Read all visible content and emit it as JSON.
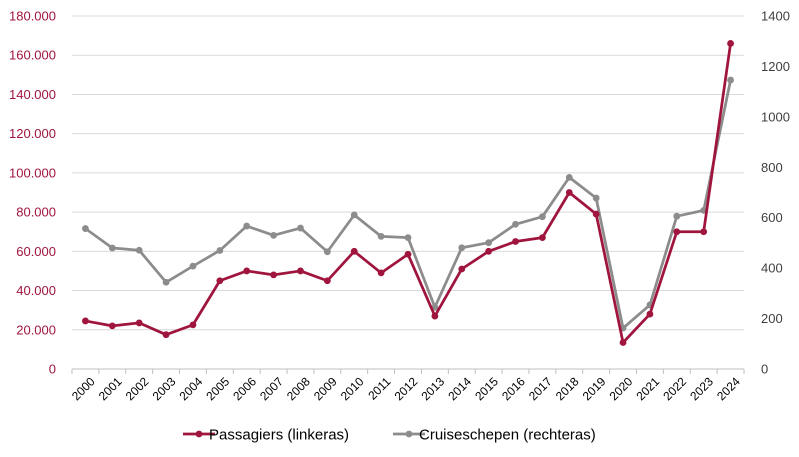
{
  "chart_data": {
    "type": "line",
    "title": "",
    "xlabel": "",
    "ylabel": "",
    "categories": [
      "2000",
      "2001",
      "2002",
      "2003",
      "2004",
      "2005",
      "2006",
      "2007",
      "2008",
      "2009",
      "2010",
      "2011",
      "2012",
      "2013",
      "2014",
      "2015",
      "2016",
      "2017",
      "2018",
      "2019",
      "2020",
      "2021",
      "2022",
      "2023",
      "2024"
    ],
    "y_left": {
      "ylim": [
        0,
        180000
      ],
      "ticks": [
        0,
        20000,
        40000,
        60000,
        80000,
        100000,
        120000,
        140000,
        160000,
        180000
      ],
      "tick_labels": [
        "0",
        "20.000",
        "40.000",
        "60.000",
        "80.000",
        "100.000",
        "120.000",
        "140.000",
        "160.000",
        "180.000"
      ]
    },
    "y_right": {
      "ylim": [
        0,
        1400
      ],
      "ticks": [
        0,
        200,
        400,
        600,
        800,
        1000,
        1200,
        1400
      ],
      "tick_labels": [
        "0",
        "200",
        "400",
        "600",
        "800",
        "1000",
        "1200",
        "1400"
      ]
    },
    "series": [
      {
        "name": "Passagiers (linkeras)",
        "axis": "left",
        "color": "#a0153e",
        "values": [
          24500,
          22000,
          23500,
          17500,
          22500,
          45000,
          50000,
          48000,
          50000,
          45000,
          60000,
          49000,
          58500,
          27000,
          51000,
          60000,
          65000,
          67000,
          90000,
          79000,
          13500,
          28000,
          70000,
          70000,
          166000
        ]
      },
      {
        "name": "Cruiseschepen (rechteras)",
        "axis": "right",
        "color": "#8c8c8c",
        "values": [
          557,
          480,
          471,
          344,
          408,
          470,
          567,
          530,
          559,
          465,
          611,
          526,
          521,
          245,
          481,
          501,
          574,
          604,
          760,
          678,
          162,
          254,
          606,
          629,
          1146
        ]
      }
    ],
    "grid": true,
    "legend_position": "bottom"
  }
}
